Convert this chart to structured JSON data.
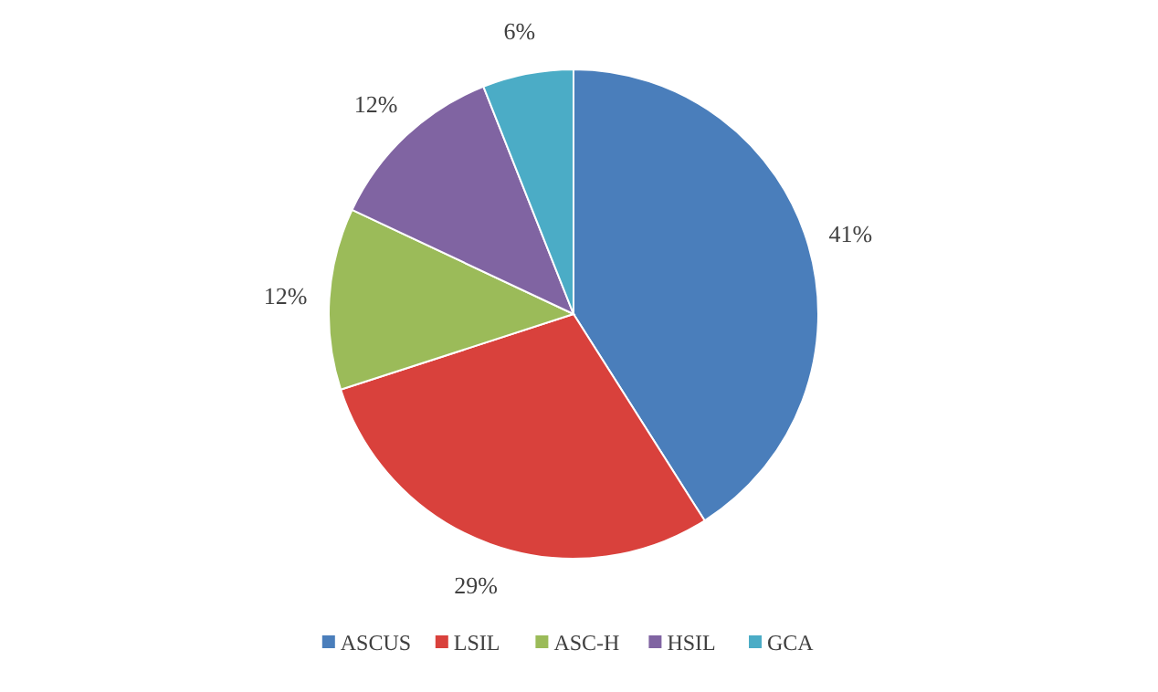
{
  "chart_data": {
    "type": "pie",
    "categories": [
      "ASCUS",
      "LSIL",
      "ASC-H",
      "HSIL",
      "GCA"
    ],
    "values": [
      41,
      29,
      12,
      12,
      6
    ],
    "colors": [
      "#4a7ebb",
      "#d9413c",
      "#9bbb59",
      "#8064a2",
      "#4bacc6"
    ],
    "value_labels": [
      "41%",
      "29%",
      "12%",
      "12%",
      "6%"
    ],
    "legend": "bottom"
  }
}
